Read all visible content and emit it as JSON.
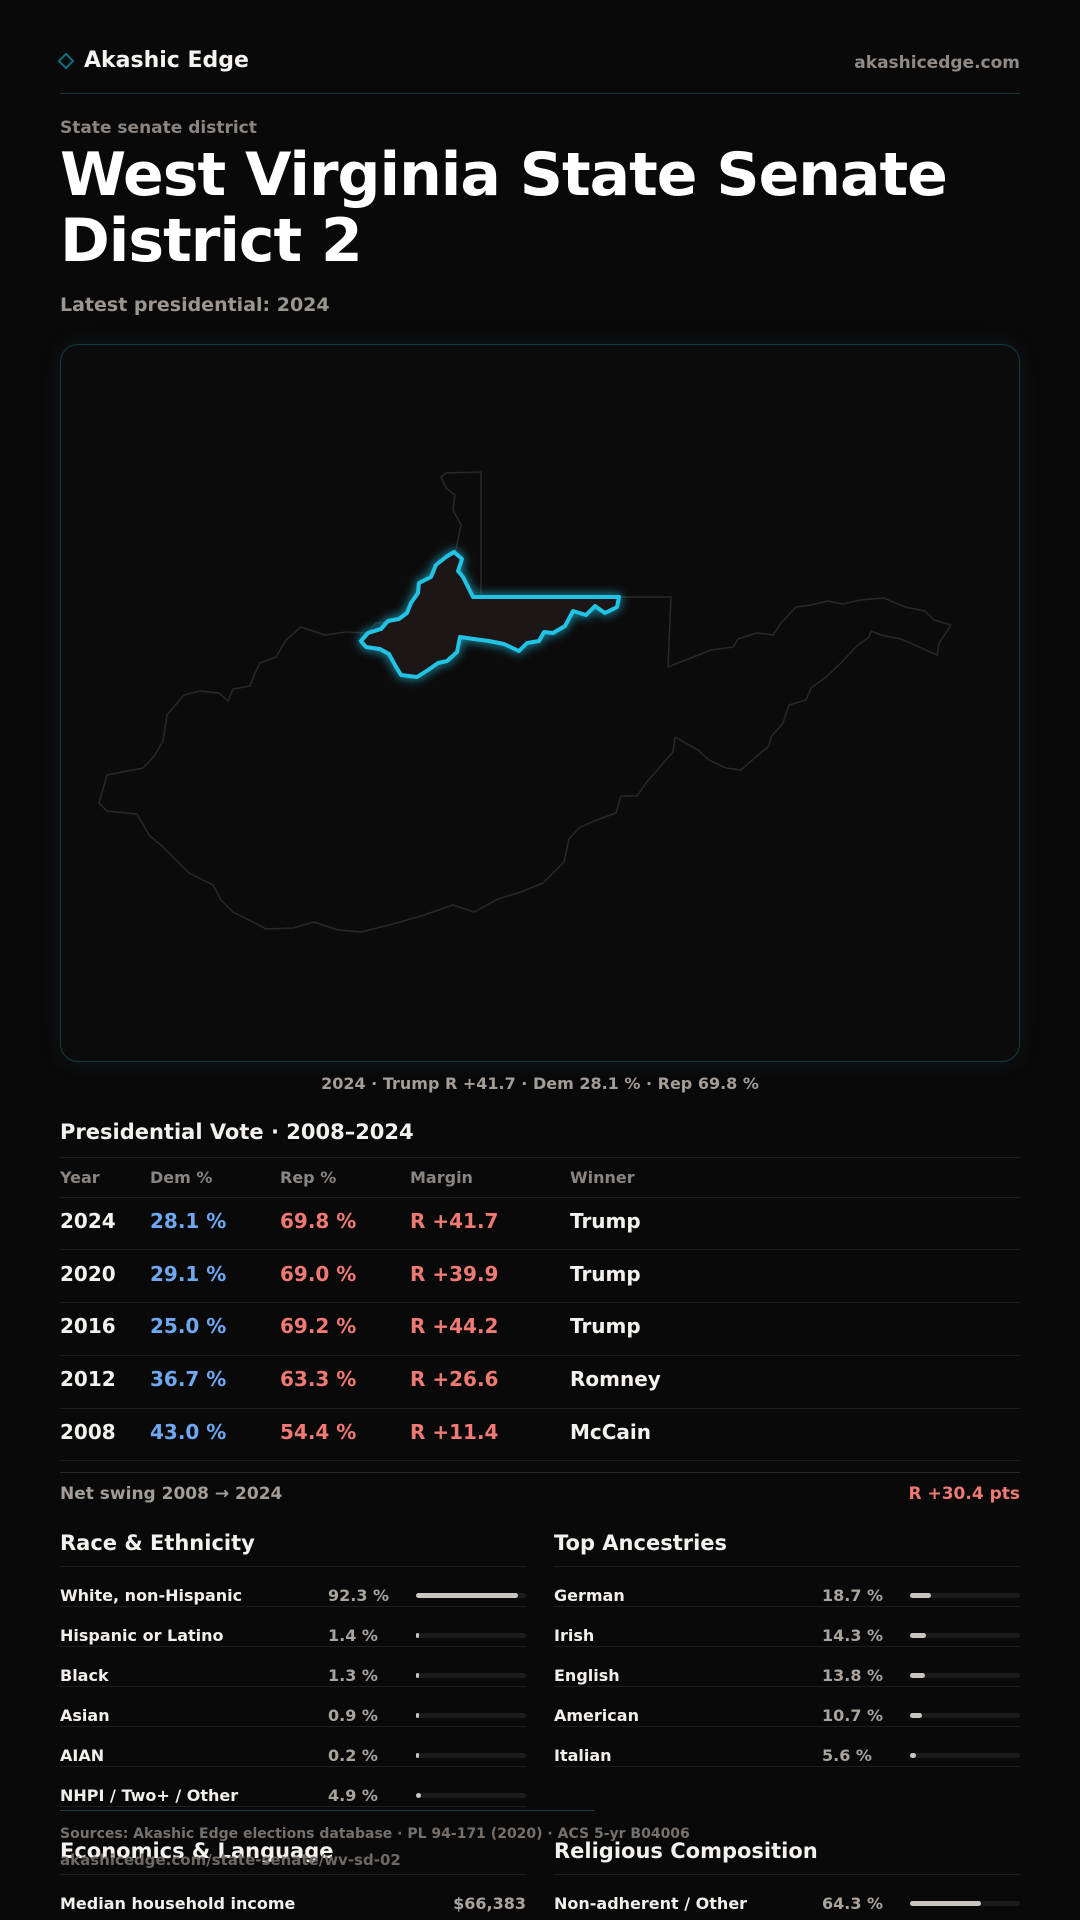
{
  "header": {
    "brand": "Akashic Edge",
    "brand_icon": "diamond-icon",
    "domain": "akashicedge.com"
  },
  "hero": {
    "eyebrow": "State senate district",
    "title": "West Virginia State Senate District 2",
    "subtitle": "Latest presidential: 2024"
  },
  "map": {
    "caption": "2024 · Trump R +41.7 · Dem 28.1 % · Rep 69.8 %",
    "highlight_color": "#20c4e6"
  },
  "presidential": {
    "title": "Presidential Vote · 2008–2024",
    "columns": [
      "Year",
      "Dem %",
      "Rep %",
      "Margin",
      "Winner"
    ],
    "rows": [
      {
        "year": "2024",
        "dem": "28.1 %",
        "rep": "69.8 %",
        "margin": "R +41.7",
        "winner": "Trump"
      },
      {
        "year": "2020",
        "dem": "29.1 %",
        "rep": "69.0 %",
        "margin": "R +39.9",
        "winner": "Trump"
      },
      {
        "year": "2016",
        "dem": "25.0 %",
        "rep": "69.2 %",
        "margin": "R +44.2",
        "winner": "Trump"
      },
      {
        "year": "2012",
        "dem": "36.7 %",
        "rep": "63.3 %",
        "margin": "R +26.6",
        "winner": "Romney"
      },
      {
        "year": "2008",
        "dem": "43.0 %",
        "rep": "54.4 %",
        "margin": "R +11.4",
        "winner": "McCain"
      }
    ],
    "swing_label": "Net swing 2008 → 2024",
    "swing_value": "R +30.4 pts"
  },
  "race": {
    "title": "Race & Ethnicity",
    "rows": [
      {
        "label": "White, non-Hispanic",
        "value": "92.3 %",
        "pct": 92.3
      },
      {
        "label": "Hispanic or Latino",
        "value": "1.4 %",
        "pct": 1.4
      },
      {
        "label": "Black",
        "value": "1.3 %",
        "pct": 1.3
      },
      {
        "label": "Asian",
        "value": "0.9 %",
        "pct": 0.9
      },
      {
        "label": "AIAN",
        "value": "0.2 %",
        "pct": 0.2
      },
      {
        "label": "NHPI / Two+ / Other",
        "value": "4.9 %",
        "pct": 4.9
      }
    ]
  },
  "ancestry": {
    "title": "Top Ancestries",
    "rows": [
      {
        "label": "German",
        "value": "18.7 %",
        "pct": 18.7
      },
      {
        "label": "Irish",
        "value": "14.3 %",
        "pct": 14.3
      },
      {
        "label": "English",
        "value": "13.8 %",
        "pct": 13.8
      },
      {
        "label": "American",
        "value": "10.7 %",
        "pct": 10.7
      },
      {
        "label": "Italian",
        "value": "5.6 %",
        "pct": 5.6
      }
    ]
  },
  "economics": {
    "title": "Economics & Language",
    "rows": [
      {
        "label": "Median household income",
        "value": "$66,383"
      }
    ]
  },
  "religion": {
    "title": "Religious Composition",
    "rows": [
      {
        "label": "Non-adherent / Other",
        "value": "64.3 %",
        "pct": 64.3
      }
    ]
  },
  "footer": {
    "sources": "Sources: Akashic Edge elections database · PL 94-171 (2020) · ACS 5-yr B04006",
    "url": "akashicedge.com/state-senate/wv-sd-02"
  }
}
